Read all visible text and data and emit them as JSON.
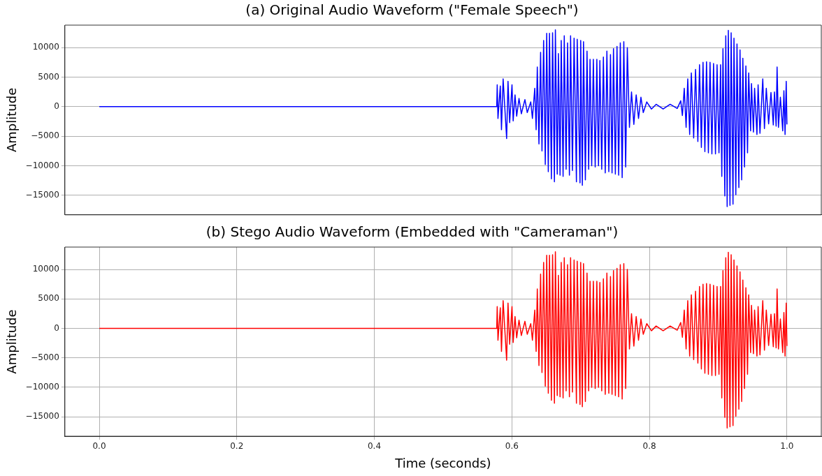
{
  "chart_data": [
    {
      "type": "line",
      "title": "(a) Original Audio Waveform (\"Female Speech\")",
      "ylabel": "Amplitude",
      "xlim": [
        -0.05,
        1.05
      ],
      "ylim": [
        -18300,
        13800
      ],
      "yticks": [
        {
          "value": -15000,
          "label": "−15000"
        },
        {
          "value": -10000,
          "label": "−10000"
        },
        {
          "value": -5000,
          "label": "−5000"
        },
        0,
        5000,
        10000
      ],
      "grid": "y",
      "tick_labels": "y",
      "x": [
        0,
        0.578,
        0.5787,
        0.5798,
        0.5832,
        0.5849,
        0.5873,
        0.5924,
        0.5944,
        0.5968,
        0.6002,
        0.6019,
        0.6046,
        0.607,
        0.6104,
        0.6138,
        0.619,
        0.6224,
        0.6275,
        0.6299,
        0.6333,
        0.6353,
        0.637,
        0.6394,
        0.6418,
        0.6438,
        0.6462,
        0.6486,
        0.6507,
        0.653,
        0.6547,
        0.6575,
        0.6592,
        0.6619,
        0.6633,
        0.666,
        0.6677,
        0.6701,
        0.6718,
        0.6745,
        0.6762,
        0.6789,
        0.681,
        0.6837,
        0.6854,
        0.6881,
        0.6905,
        0.6939,
        0.695,
        0.6991,
        0.7001,
        0.7025,
        0.7042,
        0.7069,
        0.7093,
        0.7117,
        0.7137,
        0.7161,
        0.7185,
        0.7212,
        0.7236,
        0.726,
        0.728,
        0.7307,
        0.7331,
        0.7358,
        0.7382,
        0.741,
        0.7434,
        0.7457,
        0.7478,
        0.7505,
        0.7529,
        0.7553,
        0.7577,
        0.7604,
        0.7628,
        0.7655,
        0.7679,
        0.771,
        0.774,
        0.7774,
        0.7808,
        0.7842,
        0.7877,
        0.7911,
        0.7962,
        0.803,
        0.8098,
        0.82,
        0.8302,
        0.8405,
        0.8456,
        0.848,
        0.8507,
        0.8534,
        0.8558,
        0.8586,
        0.861,
        0.8644,
        0.8671,
        0.8705,
        0.8729,
        0.8756,
        0.878,
        0.8807,
        0.8831,
        0.8858,
        0.8882,
        0.8909,
        0.8933,
        0.8961,
        0.8984,
        0.9012,
        0.9035,
        0.9053,
        0.907,
        0.9097,
        0.9111,
        0.9131,
        0.9148,
        0.9172,
        0.9189,
        0.9216,
        0.923,
        0.9257,
        0.9274,
        0.9301,
        0.9318,
        0.9342,
        0.9359,
        0.9383,
        0.9403,
        0.9427,
        0.9444,
        0.9472,
        0.9485,
        0.9513,
        0.953,
        0.9564,
        0.9581,
        0.9608,
        0.9649,
        0.9673,
        0.97,
        0.9734,
        0.9768,
        0.9802,
        0.9819,
        0.9843,
        0.9857,
        0.9877,
        0.9905,
        0.9939,
        0.9956,
        0.9973,
        0.999,
        1.0
      ],
      "series": [
        {
          "color": "#0000ff",
          "values": [
            0,
            0,
            3700,
            -2000,
            3500,
            -3900,
            4700,
            -5400,
            4300,
            -2700,
            3700,
            -2400,
            2000,
            -1600,
            1400,
            -1200,
            1200,
            -1000,
            800,
            -2000,
            3100,
            -3900,
            6700,
            -6300,
            9200,
            -7500,
            11200,
            -9800,
            12400,
            -11000,
            12400,
            -12200,
            12500,
            -12700,
            13000,
            -11400,
            9000,
            -11600,
            11200,
            -11800,
            12000,
            -10600,
            10800,
            -11600,
            12000,
            -10800,
            11600,
            -12700,
            11400,
            -12900,
            11200,
            -13300,
            11000,
            -12400,
            9400,
            -10600,
            8000,
            -10000,
            8000,
            -10200,
            8000,
            -10000,
            7800,
            -10600,
            8400,
            -11200,
            9400,
            -11000,
            8800,
            -11200,
            9800,
            -11400,
            10200,
            -11600,
            10800,
            -12000,
            11000,
            -10200,
            10000,
            -3500,
            2500,
            -3000,
            2000,
            -2000,
            1600,
            -1000,
            800,
            -400,
            400,
            -400,
            400,
            -300,
            1000,
            -1500,
            3100,
            -3500,
            4700,
            -4700,
            5700,
            -5300,
            6300,
            -5900,
            7100,
            -6900,
            7500,
            -7600,
            7600,
            -7800,
            7500,
            -8000,
            7300,
            -8000,
            7100,
            -7800,
            7100,
            -11800,
            9800,
            -15100,
            12000,
            -16900,
            12900,
            -16700,
            12500,
            -16500,
            11600,
            -14900,
            10600,
            -13700,
            9600,
            -12400,
            8200,
            -10200,
            6900,
            -7800,
            5700,
            -4100,
            3900,
            -4300,
            3100,
            -4700,
            3700,
            -4500,
            4700,
            -3700,
            3100,
            -2900,
            2400,
            -3100,
            2500,
            -3300,
            6700,
            -3500,
            1600,
            -4100,
            2700,
            -4700,
            4300,
            -3000
          ]
        }
      ]
    },
    {
      "type": "line",
      "title": "(b) Stego Audio Waveform (Embedded with \"Cameraman\")",
      "xlabel": "Time (seconds)",
      "ylabel": "Amplitude",
      "xlim": [
        -0.05,
        1.05
      ],
      "ylim": [
        -18300,
        13800
      ],
      "xticks": [
        {
          "value": 0,
          "label": "0.0"
        },
        0.2,
        0.4,
        0.6,
        0.8,
        {
          "value": 1,
          "label": "1.0"
        }
      ],
      "yticks": [
        {
          "value": -15000,
          "label": "−15000"
        },
        {
          "value": -10000,
          "label": "−10000"
        },
        {
          "value": -5000,
          "label": "−5000"
        },
        0,
        5000,
        10000
      ],
      "grid": true,
      "x": [
        0,
        0.578,
        0.5787,
        0.5798,
        0.5832,
        0.5849,
        0.5873,
        0.5924,
        0.5944,
        0.5968,
        0.6002,
        0.6019,
        0.6046,
        0.607,
        0.6104,
        0.6138,
        0.619,
        0.6224,
        0.6275,
        0.6299,
        0.6333,
        0.6353,
        0.637,
        0.6394,
        0.6418,
        0.6438,
        0.6462,
        0.6486,
        0.6507,
        0.653,
        0.6547,
        0.6575,
        0.6592,
        0.6619,
        0.6633,
        0.666,
        0.6677,
        0.6701,
        0.6718,
        0.6745,
        0.6762,
        0.6789,
        0.681,
        0.6837,
        0.6854,
        0.6881,
        0.6905,
        0.6939,
        0.695,
        0.6991,
        0.7001,
        0.7025,
        0.7042,
        0.7069,
        0.7093,
        0.7117,
        0.7137,
        0.7161,
        0.7185,
        0.7212,
        0.7236,
        0.726,
        0.728,
        0.7307,
        0.7331,
        0.7358,
        0.7382,
        0.741,
        0.7434,
        0.7457,
        0.7478,
        0.7505,
        0.7529,
        0.7553,
        0.7577,
        0.7604,
        0.7628,
        0.7655,
        0.7679,
        0.771,
        0.774,
        0.7774,
        0.7808,
        0.7842,
        0.7877,
        0.7911,
        0.7962,
        0.803,
        0.8098,
        0.82,
        0.8302,
        0.8405,
        0.8456,
        0.848,
        0.8507,
        0.8534,
        0.8558,
        0.8586,
        0.861,
        0.8644,
        0.8671,
        0.8705,
        0.8729,
        0.8756,
        0.878,
        0.8807,
        0.8831,
        0.8858,
        0.8882,
        0.8909,
        0.8933,
        0.8961,
        0.8984,
        0.9012,
        0.9035,
        0.9053,
        0.907,
        0.9097,
        0.9111,
        0.9131,
        0.9148,
        0.9172,
        0.9189,
        0.9216,
        0.923,
        0.9257,
        0.9274,
        0.9301,
        0.9318,
        0.9342,
        0.9359,
        0.9383,
        0.9403,
        0.9427,
        0.9444,
        0.9472,
        0.9485,
        0.9513,
        0.953,
        0.9564,
        0.9581,
        0.9608,
        0.9649,
        0.9673,
        0.97,
        0.9734,
        0.9768,
        0.9802,
        0.9819,
        0.9843,
        0.9857,
        0.9877,
        0.9905,
        0.9939,
        0.9956,
        0.9973,
        0.999,
        1.0
      ],
      "series": [
        {
          "color": "#ff0000",
          "values": [
            0,
            0,
            3700,
            -2000,
            3500,
            -3900,
            4700,
            -5400,
            4300,
            -2700,
            3700,
            -2400,
            2000,
            -1600,
            1400,
            -1200,
            1200,
            -1000,
            800,
            -2000,
            3100,
            -3900,
            6700,
            -6300,
            9200,
            -7500,
            11200,
            -9800,
            12400,
            -11000,
            12400,
            -12200,
            12500,
            -12700,
            13000,
            -11400,
            9000,
            -11600,
            11200,
            -11800,
            12000,
            -10600,
            10800,
            -11600,
            12000,
            -10800,
            11600,
            -12700,
            11400,
            -12900,
            11200,
            -13300,
            11000,
            -12400,
            9400,
            -10600,
            8000,
            -10000,
            8000,
            -10200,
            8000,
            -10000,
            7800,
            -10600,
            8400,
            -11200,
            9400,
            -11000,
            8800,
            -11200,
            9800,
            -11400,
            10200,
            -11600,
            10800,
            -12000,
            11000,
            -10200,
            10000,
            -3500,
            2500,
            -3000,
            2000,
            -2000,
            1600,
            -1000,
            800,
            -400,
            400,
            -400,
            400,
            -300,
            1000,
            -1500,
            3100,
            -3500,
            4700,
            -4700,
            5700,
            -5300,
            6300,
            -5900,
            7100,
            -6900,
            7500,
            -7600,
            7600,
            -7800,
            7500,
            -8000,
            7300,
            -8000,
            7100,
            -7800,
            7100,
            -11800,
            9800,
            -15100,
            12000,
            -16900,
            12900,
            -16700,
            12500,
            -16500,
            11600,
            -14900,
            10600,
            -13700,
            9600,
            -12400,
            8200,
            -10200,
            6900,
            -7800,
            5700,
            -4100,
            3900,
            -4300,
            3100,
            -4700,
            3700,
            -4500,
            4700,
            -3700,
            3100,
            -2900,
            2400,
            -3100,
            2500,
            -3300,
            6700,
            -3500,
            1600,
            -4100,
            2700,
            -4700,
            4300,
            -3000
          ]
        }
      ]
    }
  ]
}
